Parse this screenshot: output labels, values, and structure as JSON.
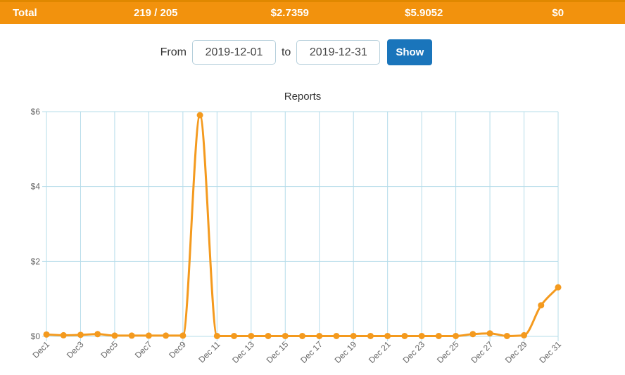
{
  "topbar": {
    "bg_color": "#f2920d",
    "accent_color": "#e08800",
    "cells": [
      {
        "label": "Total"
      },
      {
        "label": "219 / 205"
      },
      {
        "label": "$2.7359"
      },
      {
        "label": "$5.9052"
      },
      {
        "label": "$0"
      }
    ]
  },
  "filter": {
    "from_label": "From",
    "to_label": "to",
    "from_value": "2019-12-01",
    "to_value": "2019-12-31",
    "show_label": "Show",
    "button_color": "#1a75bb"
  },
  "chart_data": {
    "type": "line",
    "title": "Reports",
    "categories": [
      "Dec1",
      "Dec2",
      "Dec3",
      "Dec4",
      "Dec5",
      "Dec6",
      "Dec7",
      "Dec8",
      "Dec9",
      "Dec 10",
      "Dec 11",
      "Dec 12",
      "Dec 13",
      "Dec 14",
      "Dec 15",
      "Dec 16",
      "Dec 17",
      "Dec 18",
      "Dec 19",
      "Dec 20",
      "Dec 21",
      "Dec 22",
      "Dec 23",
      "Dec 24",
      "Dec 25",
      "Dec 26",
      "Dec 27",
      "Dec 28",
      "Dec 29",
      "Dec 30",
      "Dec 31"
    ],
    "x_tick_labels": [
      "Dec1",
      "Dec3",
      "Dec5",
      "Dec7",
      "Dec9",
      "Dec 11",
      "Dec 13",
      "Dec 15",
      "Dec 17",
      "Dec 19",
      "Dec 21",
      "Dec 23",
      "Dec 25",
      "Dec 27",
      "Dec 29",
      "Dec 31"
    ],
    "series": [
      {
        "name": "Reports",
        "color": "#f49a1e",
        "values": [
          0.05,
          0.03,
          0.04,
          0.06,
          0.02,
          0.02,
          0.02,
          0.02,
          0.02,
          5.9052,
          0.01,
          0.01,
          0.01,
          0.01,
          0.01,
          0.01,
          0.01,
          0.01,
          0.01,
          0.01,
          0.01,
          0.01,
          0.01,
          0.01,
          0.01,
          0.06,
          0.08,
          0.01,
          0.03,
          0.83,
          1.31
        ]
      }
    ],
    "y_ticks": [
      {
        "value": 0,
        "label": "$0"
      },
      {
        "value": 2,
        "label": "$2"
      },
      {
        "value": 4,
        "label": "$4"
      },
      {
        "value": 6,
        "label": "$6"
      }
    ],
    "ylim": [
      0,
      6
    ],
    "grid": true,
    "grid_color": "#b5dcea",
    "tick_color": "#666",
    "legend": "none"
  }
}
